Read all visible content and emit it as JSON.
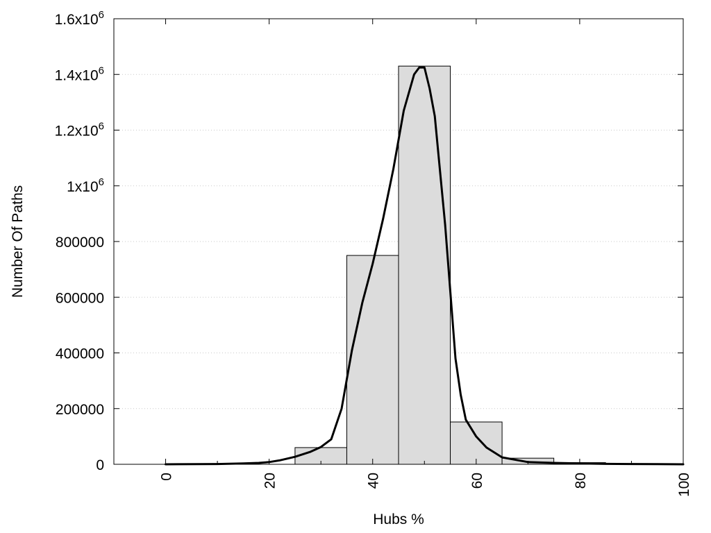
{
  "chart_data": {
    "type": "bar",
    "title": "",
    "xlabel": "Hubs %",
    "ylabel": "Number Of Paths",
    "xlim": [
      -10,
      100
    ],
    "ylim": [
      0,
      1600000
    ],
    "grid": "horizontal dotted",
    "x_ticks": [
      0,
      20,
      40,
      60,
      80,
      100
    ],
    "y_ticks": [
      {
        "value": 0,
        "label": "0"
      },
      {
        "value": 200000,
        "label": "200000"
      },
      {
        "value": 400000,
        "label": "400000"
      },
      {
        "value": 600000,
        "label": "600000"
      },
      {
        "value": 800000,
        "label": "800000"
      },
      {
        "value": 1000000,
        "label": "1x10",
        "exp": "6"
      },
      {
        "value": 1200000,
        "label": "1.2x10",
        "exp": "6"
      },
      {
        "value": 1400000,
        "label": "1.4x10",
        "exp": "6"
      },
      {
        "value": 1600000,
        "label": "1.6x10",
        "exp": "6"
      }
    ],
    "bin_width": 10,
    "bars": [
      {
        "center": 0,
        "value": 0
      },
      {
        "center": 10,
        "value": 0
      },
      {
        "center": 20,
        "value": 0
      },
      {
        "center": 30,
        "value": 60000
      },
      {
        "center": 40,
        "value": 750000
      },
      {
        "center": 50,
        "value": 1430000
      },
      {
        "center": 60,
        "value": 152000
      },
      {
        "center": 70,
        "value": 22000
      },
      {
        "center": 80,
        "value": 6000
      },
      {
        "center": 90,
        "value": 1000
      },
      {
        "center": 100,
        "value": 0
      }
    ],
    "curve": {
      "type": "line",
      "x": [
        0,
        10,
        15,
        18,
        20,
        22,
        25,
        28,
        30,
        32,
        34,
        36,
        38,
        40,
        42,
        44,
        46,
        48,
        49,
        50,
        51,
        52,
        54,
        56,
        57,
        58,
        60,
        62,
        65,
        70,
        75,
        80,
        85,
        90,
        95,
        100
      ],
      "y": [
        0,
        1000,
        3000,
        5000,
        8000,
        14000,
        27000,
        45000,
        62000,
        90000,
        200000,
        410000,
        580000,
        720000,
        880000,
        1060000,
        1270000,
        1400000,
        1425000,
        1425000,
        1350000,
        1250000,
        860000,
        380000,
        250000,
        160000,
        100000,
        60000,
        25000,
        8000,
        5000,
        3000,
        1500,
        1000,
        500,
        0
      ]
    },
    "colors": {
      "bar_fill": "#dcdcdc",
      "bar_stroke": "#000000",
      "curve": "#000000",
      "grid": "#c8c8c8"
    }
  }
}
